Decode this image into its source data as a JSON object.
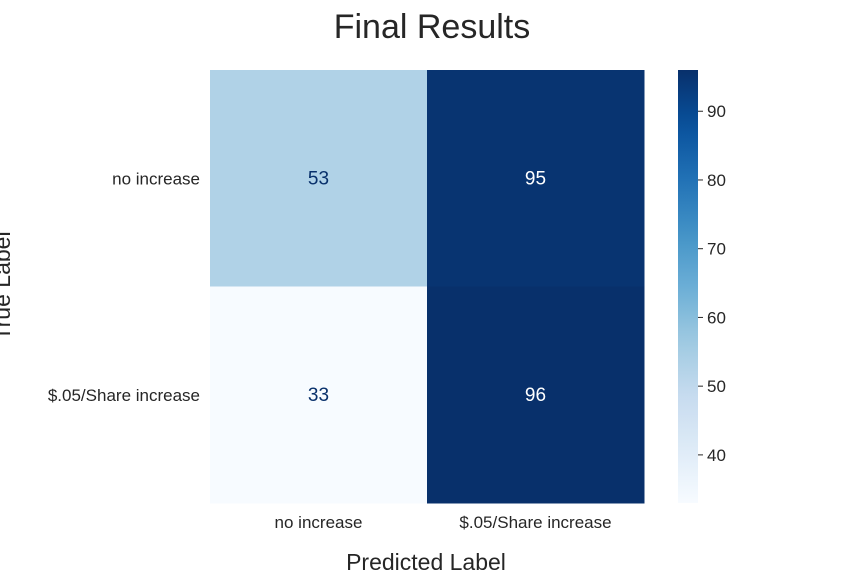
{
  "chart_data": {
    "type": "heatmap",
    "title": "Final Results",
    "xlabel": "Predicted Label",
    "ylabel": "True Label",
    "x_categories": [
      "no increase",
      "$.05/Share increase"
    ],
    "y_categories": [
      "no increase",
      "$.05/Share increase"
    ],
    "matrix": [
      [
        53,
        95
      ],
      [
        33,
        96
      ]
    ],
    "colormap": "Blues",
    "colorbar": {
      "range": [
        33,
        96
      ],
      "ticks": [
        40,
        50,
        60,
        70,
        80,
        90
      ]
    },
    "grid": false
  }
}
